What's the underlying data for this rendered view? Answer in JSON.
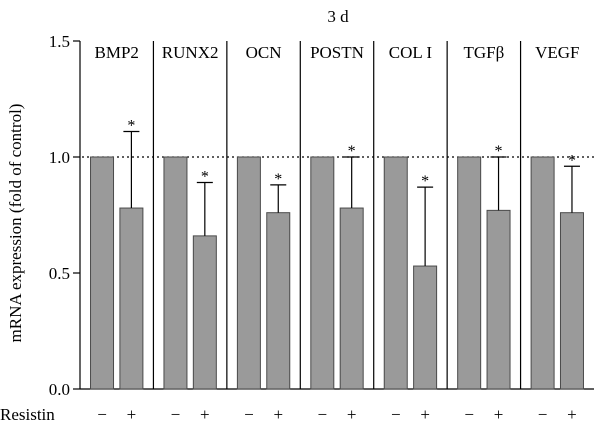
{
  "chart_data": {
    "type": "bar",
    "title": "3 d",
    "ylabel": "mRNA expression (fold of control)",
    "ylim": [
      0,
      1.5
    ],
    "yticks": [
      "0.0",
      "0.5",
      "1.0",
      "1.5"
    ],
    "reference_line": 1.0,
    "reference_style": "dotted",
    "grid": false,
    "bar_color": "#9a9a9a",
    "row_label": "Resistin",
    "groups": [
      "−",
      "+"
    ],
    "panels": [
      {
        "label": "BMP2",
        "control": 1.0,
        "treated": 0.78,
        "treated_error": 0.33,
        "significance": "*"
      },
      {
        "label": "RUNX2",
        "control": 1.0,
        "treated": 0.66,
        "treated_error": 0.23,
        "significance": "*"
      },
      {
        "label": "OCN",
        "control": 1.0,
        "treated": 0.76,
        "treated_error": 0.12,
        "significance": "*"
      },
      {
        "label": "POSTN",
        "control": 1.0,
        "treated": 0.78,
        "treated_error": 0.22,
        "significance": "*"
      },
      {
        "label": "COL I",
        "control": 1.0,
        "treated": 0.53,
        "treated_error": 0.34,
        "significance": "*"
      },
      {
        "label": "TGFβ",
        "control": 1.0,
        "treated": 0.77,
        "treated_error": 0.23,
        "significance": "*"
      },
      {
        "label": "VEGF",
        "control": 1.0,
        "treated": 0.76,
        "treated_error": 0.2,
        "significance": "*"
      }
    ]
  }
}
